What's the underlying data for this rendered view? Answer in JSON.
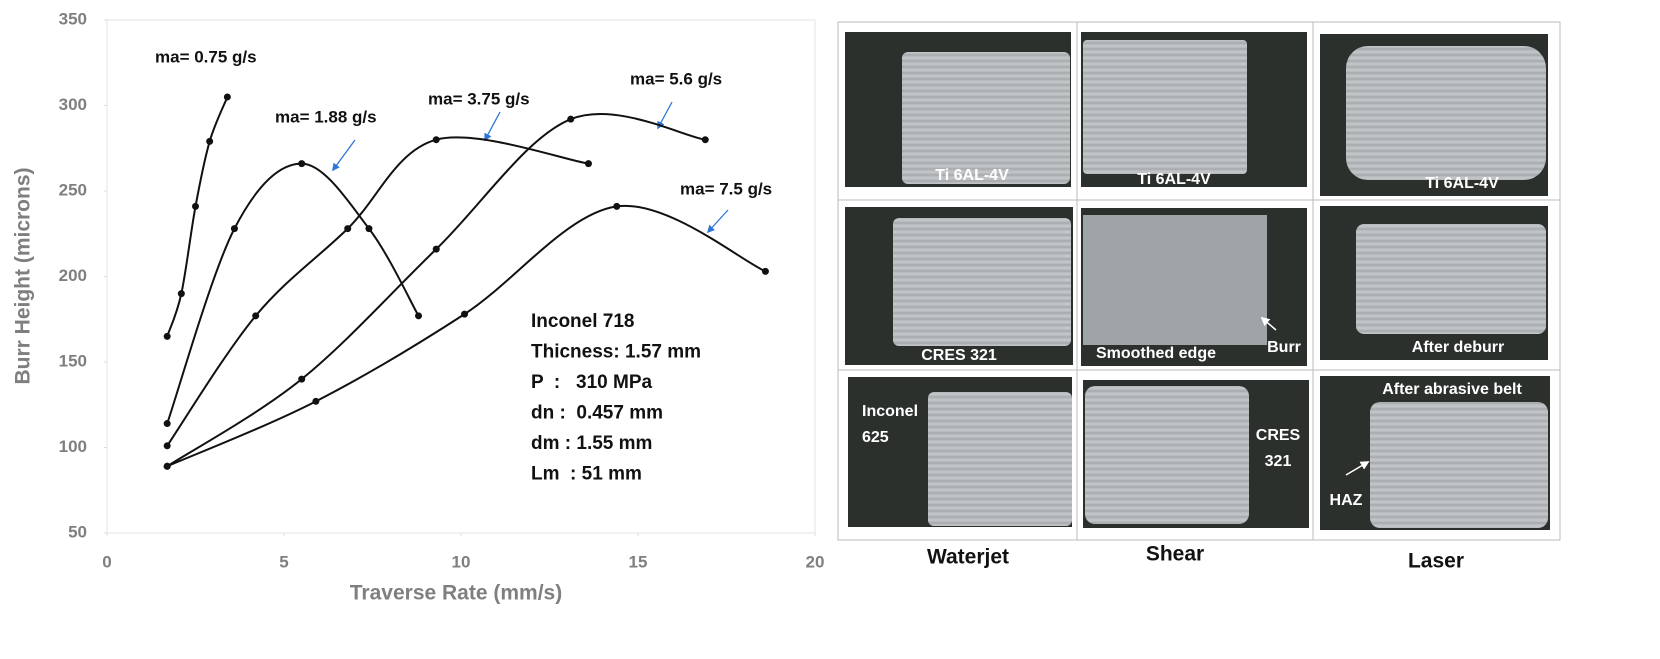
{
  "chart_data": {
    "type": "line",
    "x_label": "Traverse Rate (mm/s)",
    "y_label": "Burr Height (microns)",
    "xlim": [
      0,
      20
    ],
    "xticks": [
      0,
      5,
      10,
      15,
      20
    ],
    "ylim": [
      50,
      350
    ],
    "yticks": [
      50,
      100,
      150,
      200,
      250,
      300,
      350
    ],
    "series": [
      {
        "name": "ma= 0.75 g/s",
        "color": "#111111",
        "x": [
          1.7,
          2.1,
          2.5,
          2.9,
          3.4
        ],
        "values": [
          165,
          190,
          241,
          279,
          305
        ]
      },
      {
        "name": "ma= 1.88 g/s",
        "color": "#111111",
        "x": [
          1.7,
          3.6,
          5.5,
          7.4,
          8.8
        ],
        "values": [
          114,
          228,
          266,
          228,
          177
        ]
      },
      {
        "name": "ma= 3.75 g/s",
        "color": "#111111",
        "x": [
          1.7,
          4.2,
          6.8,
          9.3,
          13.6
        ],
        "values": [
          101,
          177,
          228,
          280,
          266
        ]
      },
      {
        "name": "ma= 5.6 g/s",
        "color": "#111111",
        "x": [
          1.7,
          5.5,
          9.3,
          13.1,
          16.9
        ],
        "values": [
          89,
          140,
          216,
          292,
          280
        ]
      },
      {
        "name": "ma= 7.5 g/s",
        "color": "#111111",
        "x": [
          1.7,
          5.9,
          10.1,
          14.4,
          18.6
        ],
        "values": [
          89,
          127,
          178,
          241,
          203
        ]
      }
    ],
    "annotations": [
      "Inconel 718",
      "Thicness: 1.57 mm",
      "P  :   310 MPa",
      "dn :  0.457 mm",
      "dm : 1.55 mm",
      "Lm  : 51 mm"
    ]
  },
  "photo_panel": {
    "cells": [
      {
        "labels": [
          "Ti 6AL-4V"
        ]
      },
      {
        "labels": [
          "Ti 6AL-4V"
        ]
      },
      {
        "labels": [
          "Ti 6AL-4V"
        ]
      },
      {
        "labels": [
          "CRES 321"
        ]
      },
      {
        "labels": [
          "Smoothed edge",
          "Burr"
        ]
      },
      {
        "labels": [
          "After deburr"
        ]
      },
      {
        "labels": [
          "Inconel",
          "625"
        ]
      },
      {
        "labels": [
          "CRES",
          "321"
        ]
      },
      {
        "labels": [
          "After abrasive belt",
          "HAZ"
        ]
      }
    ],
    "columns": [
      "Waterjet",
      "Shear",
      "Laser"
    ]
  }
}
